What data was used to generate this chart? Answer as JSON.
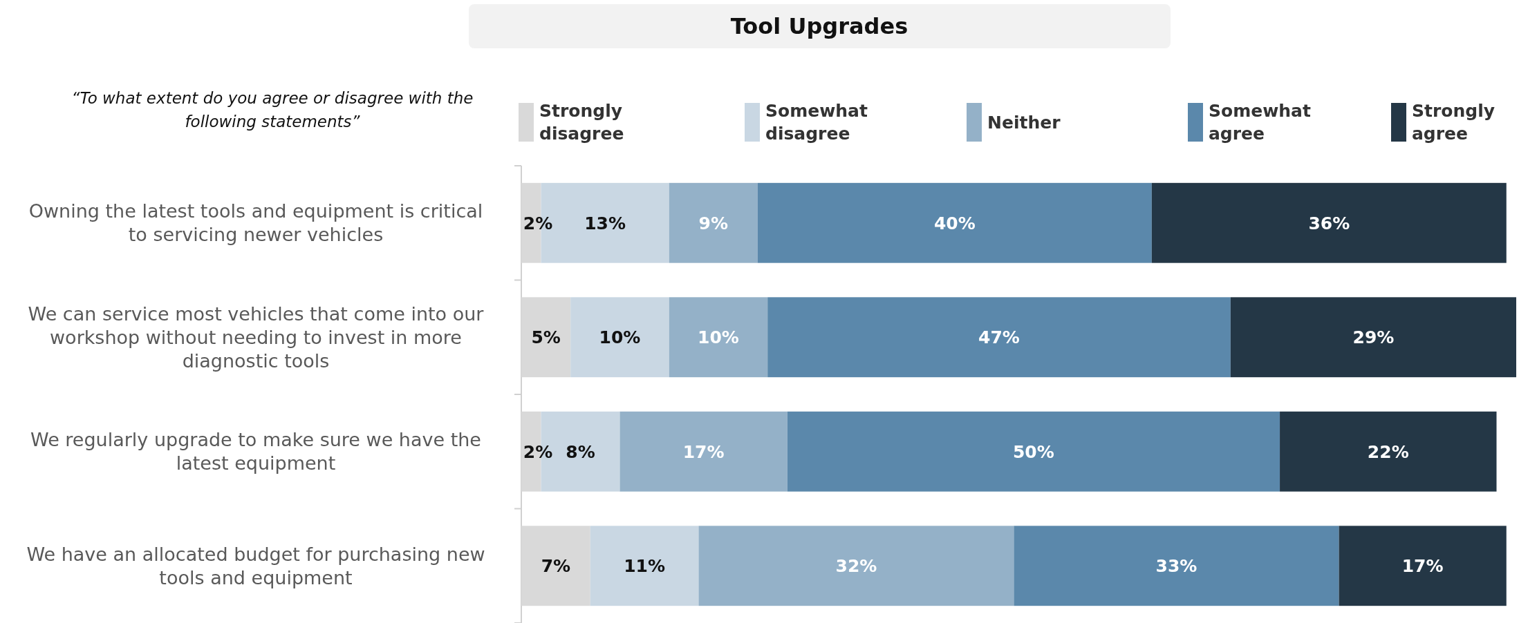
{
  "chart_data": {
    "type": "bar",
    "orientation": "horizontal",
    "stacked": true,
    "title": "Tool Upgrades",
    "subtitle": "“To what extent do you agree or disagree with the following statements”",
    "categories": [
      "Owning the latest tools and equipment is critical to servicing newer vehicles",
      "We can service most vehicles that come into our workshop without needing to invest in more diagnostic tools",
      "We regularly upgrade to make sure we have the latest equipment",
      "We have an allocated budget for purchasing new tools and equipment"
    ],
    "series": [
      {
        "name": "Strongly disagree",
        "color": "#d9d9d9",
        "values": [
          2,
          5,
          2,
          7
        ],
        "value_labels": [
          "2%",
          "5%",
          "2%",
          "7%"
        ]
      },
      {
        "name": "Somewhat disagree",
        "color": "#c9d7e3",
        "values": [
          13,
          10,
          8,
          11
        ],
        "value_labels": [
          "13%",
          "10%",
          "8%",
          "11%"
        ]
      },
      {
        "name": "Neither",
        "color": "#94b1c8",
        "values": [
          9,
          10,
          17,
          32
        ],
        "value_labels": [
          "9%",
          "10%",
          "17%",
          "32%"
        ]
      },
      {
        "name": "Somewhat agree",
        "color": "#5b88ab",
        "values": [
          40,
          47,
          50,
          33
        ],
        "value_labels": [
          "40%",
          "47%",
          "50%",
          "33%"
        ]
      },
      {
        "name": "Strongly agree",
        "color": "#243746",
        "values": [
          36,
          29,
          22,
          17
        ],
        "value_labels": [
          "36%",
          "29%",
          "22%",
          "17%"
        ]
      }
    ],
    "tick_labels": "y",
    "legend": "top"
  }
}
